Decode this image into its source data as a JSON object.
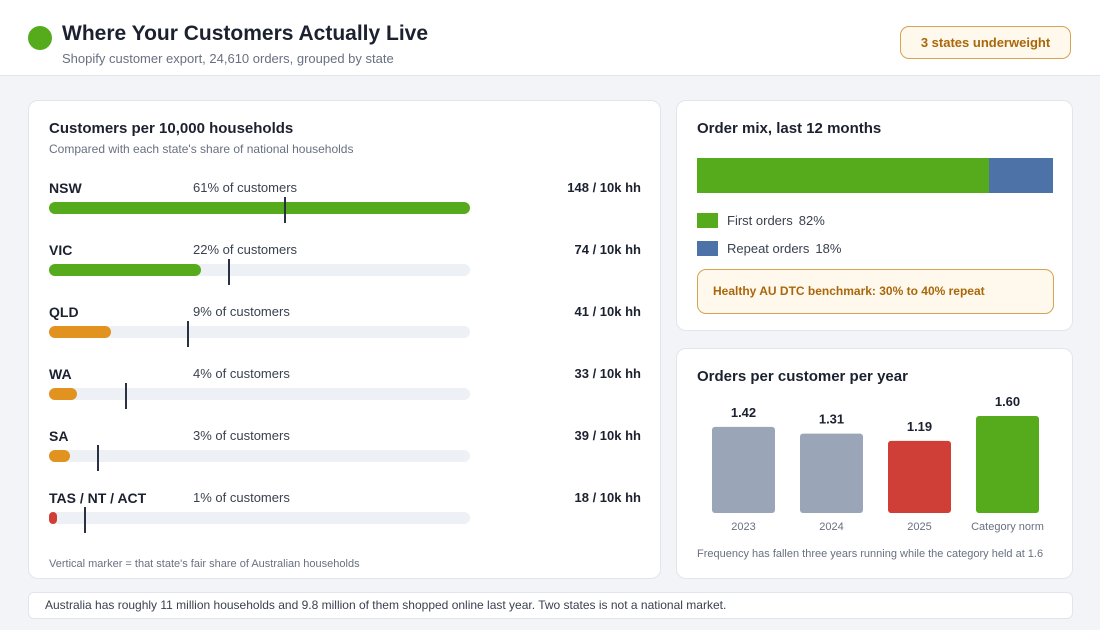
{
  "header": {
    "title": "Where Your Customers Actually Live",
    "subtitle": "Shopify customer export, 24,610 orders, grouped by state",
    "badge": "3 states underweight",
    "brand_color": "#56ab1c"
  },
  "state_card": {
    "title": "Customers per 10,000 households",
    "subtitle": "Compared with each state's share of national households",
    "footnote": "Vertical marker = that state's fair share of Australian households"
  },
  "mix_card": {
    "title": "Order mix, last 12 months",
    "benchmark": "Healthy AU DTC benchmark: 30% to 40% repeat"
  },
  "freq_card": {
    "title": "Orders per customer per year",
    "footnote": "Frequency has fallen three years running while the category held at 1.6"
  },
  "bottom_note": "Australia has roughly 11 million households and 9.8 million of them shopped online last year. Two states is not a national market.",
  "chart_data": [
    {
      "type": "bar",
      "orientation": "horizontal",
      "title": "Customers per 10,000 households",
      "axis_max_percent": 61,
      "grid": false,
      "rows": [
        {
          "state": "NSW",
          "share_text": "61% of customers",
          "share_percent": 61,
          "household_share_percent": 34,
          "rate_text": "148 / 10k hh",
          "rate": 148,
          "color": "#56ab1c"
        },
        {
          "state": "VIC",
          "share_text": "22% of customers",
          "share_percent": 22,
          "household_share_percent": 26,
          "rate_text": "74 / 10k hh",
          "rate": 74,
          "color": "#56ab1c"
        },
        {
          "state": "QLD",
          "share_text": "9% of customers",
          "share_percent": 9,
          "household_share_percent": 20,
          "rate_text": "41 / 10k hh",
          "rate": 41,
          "color": "#e1921f"
        },
        {
          "state": "WA",
          "share_text": "4% of customers",
          "share_percent": 4,
          "household_share_percent": 11,
          "rate_text": "33 / 10k hh",
          "rate": 33,
          "color": "#e1921f"
        },
        {
          "state": "SA",
          "share_text": "3% of customers",
          "share_percent": 3,
          "household_share_percent": 7,
          "rate_text": "39 / 10k hh",
          "rate": 39,
          "color": "#e1921f"
        },
        {
          "state": "TAS / NT / ACT",
          "share_text": "1% of customers",
          "share_percent": 1,
          "household_share_percent": 5,
          "rate_text": "18 / 10k hh",
          "rate": 18,
          "color": "#cf3f38"
        }
      ]
    },
    {
      "type": "bar",
      "orientation": "stacked-horizontal",
      "title": "Order mix, last 12 months",
      "legend_placement": "bottom-left",
      "segments": [
        {
          "name": "First orders",
          "value": 82,
          "value_text": "82%",
          "color": "#56ab1c"
        },
        {
          "name": "Repeat orders",
          "value": 18,
          "value_text": "18%",
          "color": "#4d72a8"
        }
      ]
    },
    {
      "type": "bar",
      "title": "Orders per customer per year",
      "categories": [
        "2023",
        "2024",
        "2025",
        "Category norm"
      ],
      "values": [
        1.42,
        1.31,
        1.19,
        1.6
      ],
      "value_labels": [
        "1.42",
        "1.31",
        "1.19",
        "1.60"
      ],
      "colors": [
        "#9aa6b8",
        "#9aa6b8",
        "#cf3f38",
        "#56ab1c"
      ],
      "ylim": [
        0,
        1.6
      ],
      "grid": false
    }
  ]
}
